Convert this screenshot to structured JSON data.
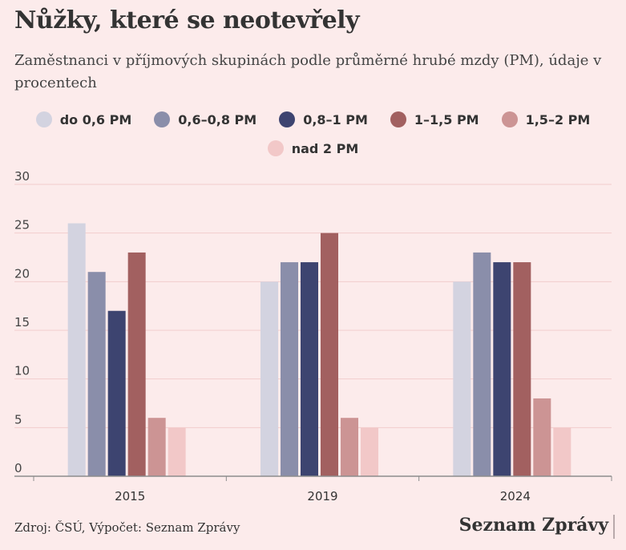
{
  "header": {
    "title": "Nůžky, které se neotevřely",
    "subtitle": "Zaměstnanci v příjmových skupinách podle průměrné hrubé mzdy (PM), údaje v procentech"
  },
  "footer": {
    "source": "Zdroj: ČSÚ, Výpočet: Seznam Zprávy",
    "brand": "Seznam Zprávy"
  },
  "chart_data": {
    "type": "bar",
    "categories": [
      "2015",
      "2019",
      "2024"
    ],
    "series": [
      {
        "name": "do 0,6 PM",
        "color": "#d3d3e0",
        "values": [
          26,
          20,
          20
        ]
      },
      {
        "name": "0,6–0,8 PM",
        "color": "#8a8eaa",
        "values": [
          21,
          22,
          23
        ]
      },
      {
        "name": "0,8–1 PM",
        "color": "#3d4470",
        "values": [
          17,
          22,
          22
        ]
      },
      {
        "name": "1–1,5 PM",
        "color": "#a26060",
        "values": [
          23,
          25,
          22
        ]
      },
      {
        "name": "1,5–2 PM",
        "color": "#cc9494",
        "values": [
          6,
          6,
          8
        ]
      },
      {
        "name": "nad 2 PM",
        "color": "#f2c8c8",
        "values": [
          5,
          5,
          5
        ]
      }
    ],
    "ylim": [
      0,
      30
    ],
    "yticks": [
      "0",
      "5",
      "10",
      "15",
      "20",
      "25",
      "30"
    ],
    "grid": true,
    "legend": "top-center",
    "xlabel": "",
    "ylabel": ""
  }
}
